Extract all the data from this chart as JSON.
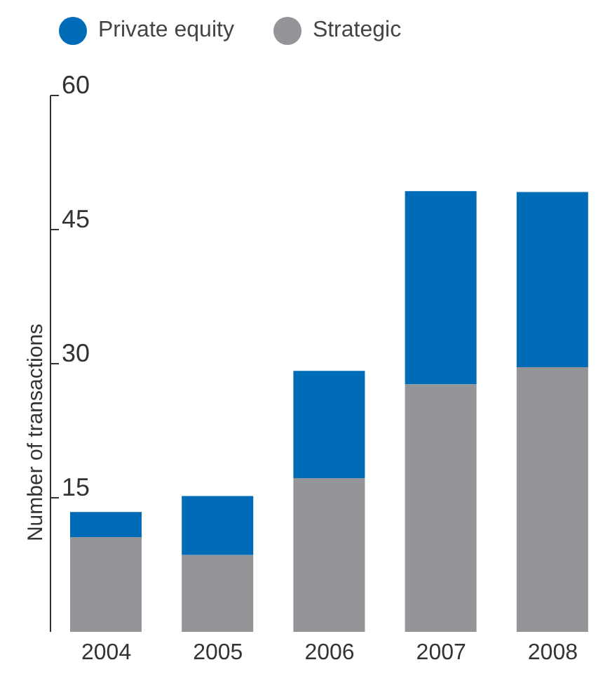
{
  "chart_data": {
    "type": "bar",
    "stacked": true,
    "ylabel": "Number of transactions",
    "categories": [
      "2004",
      "2005",
      "2006",
      "2007",
      "2008"
    ],
    "series": [
      {
        "name": "Strategic",
        "color": "#939598",
        "values": [
          10.6,
          8.6,
          17.2,
          27.7,
          29.6
        ]
      },
      {
        "name": "Private equity",
        "color": "#006bb6",
        "values": [
          2.8,
          6.6,
          12,
          21.6,
          19.6
        ]
      }
    ],
    "ylim": [
      0,
      60
    ],
    "yticks": [
      15,
      30,
      45,
      60
    ],
    "legend": "top left",
    "grid": false
  }
}
